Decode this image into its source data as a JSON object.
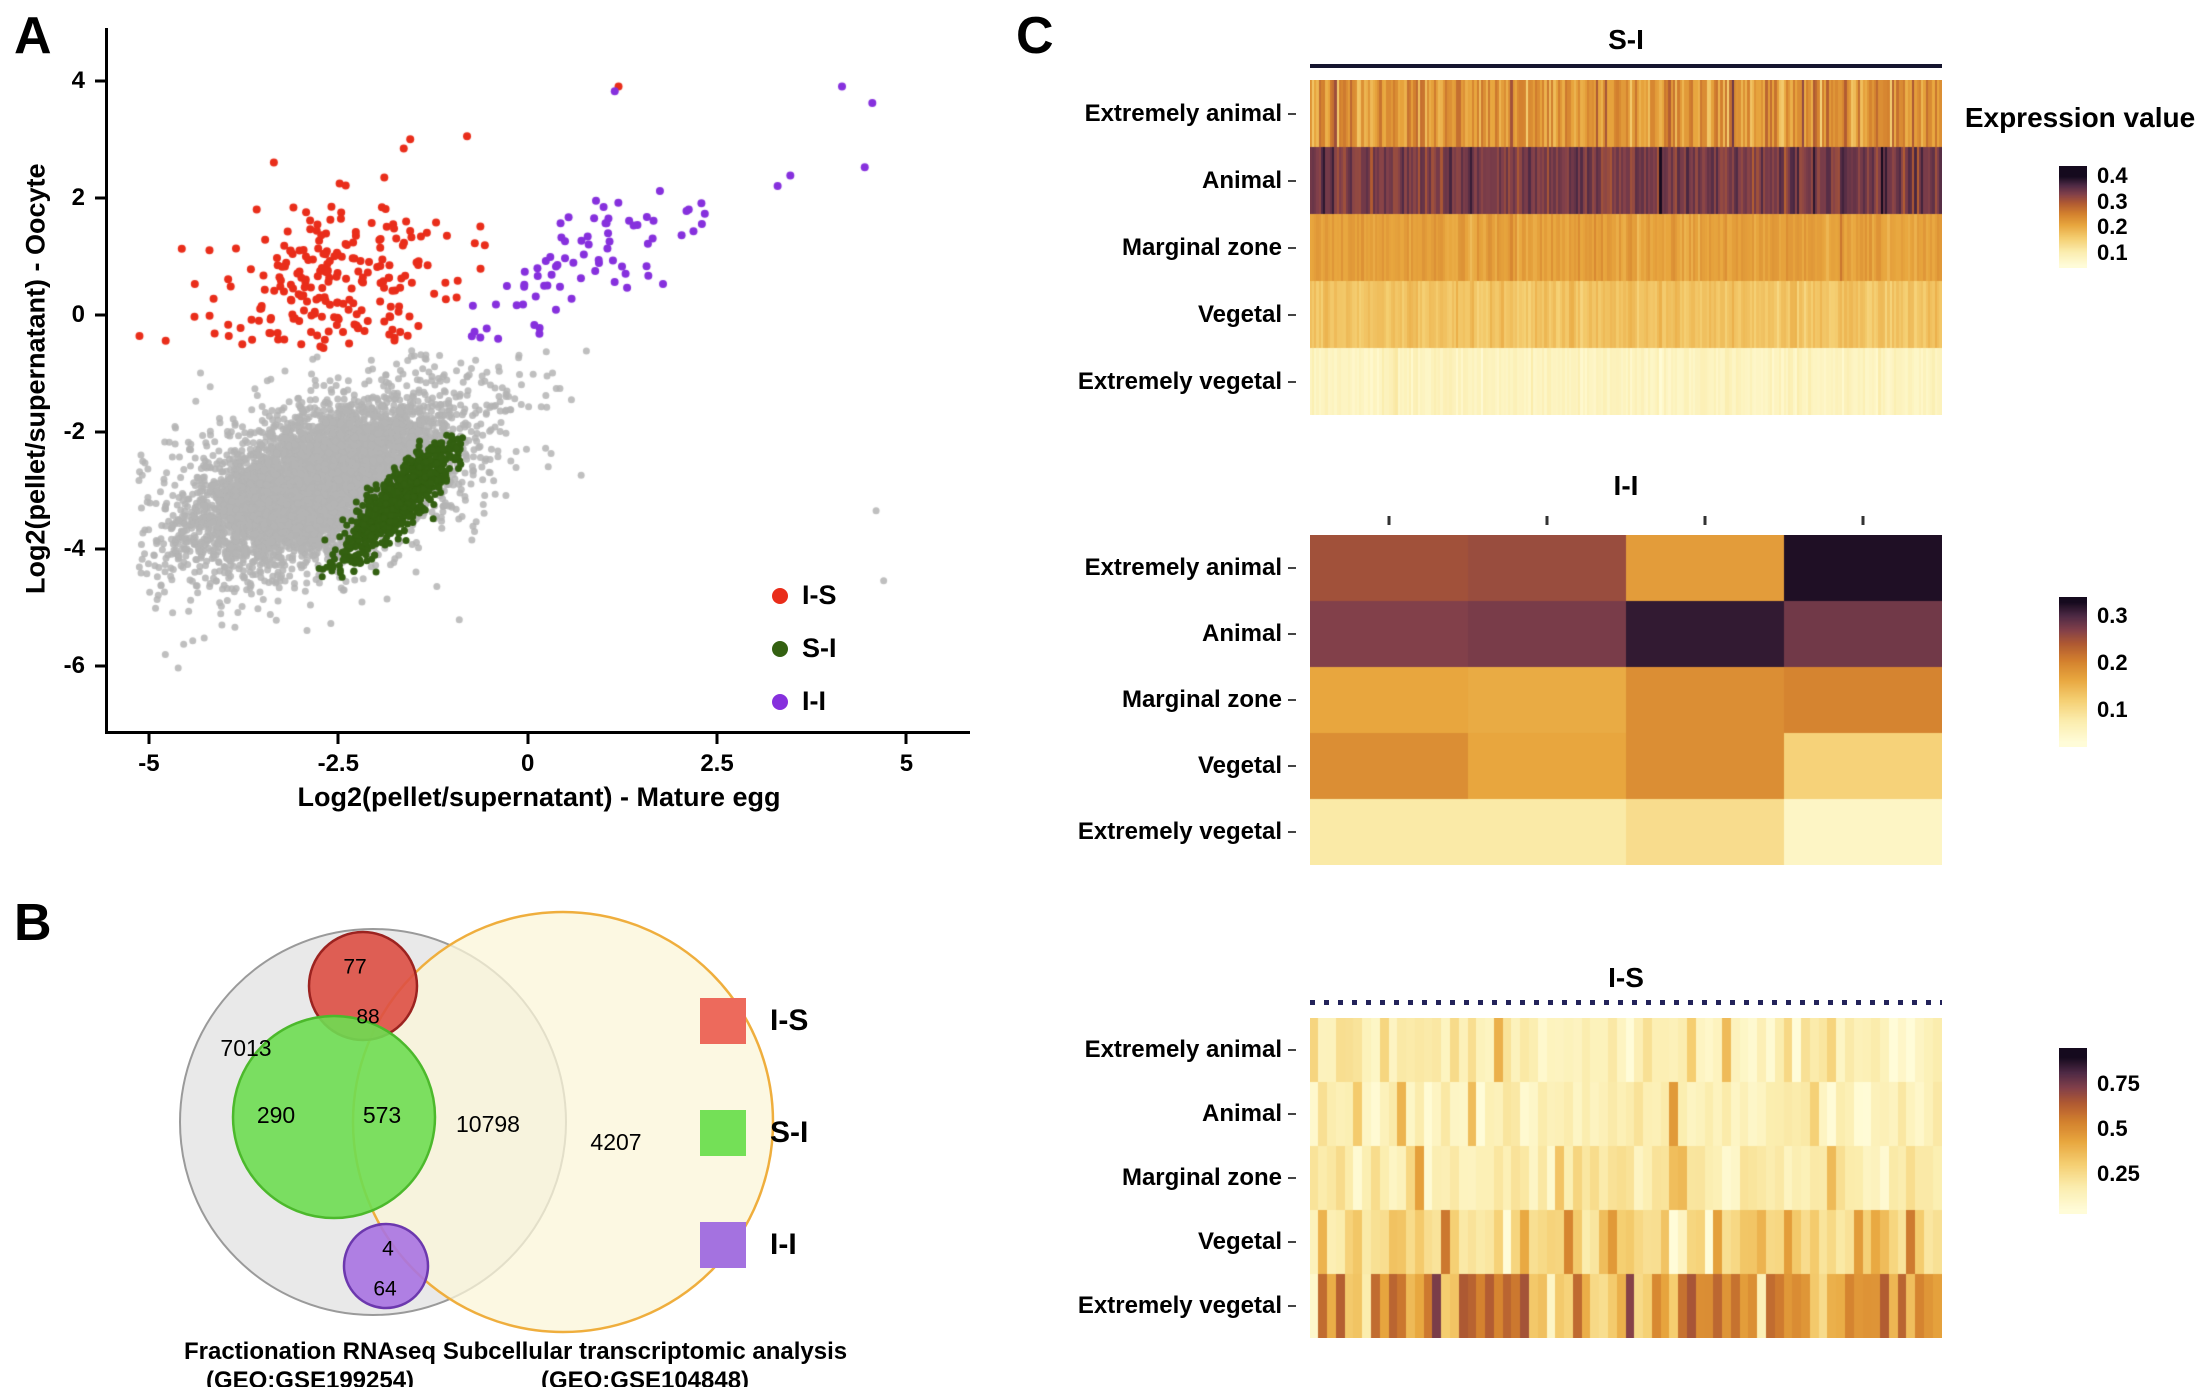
{
  "panel_labels": [
    "A",
    "B",
    "C"
  ],
  "colormap_stops": [
    [
      0.0,
      "#fffcd8"
    ],
    [
      0.15,
      "#fbedae"
    ],
    [
      0.3,
      "#f5cf72"
    ],
    [
      0.45,
      "#e8a63e"
    ],
    [
      0.58,
      "#d3802e"
    ],
    [
      0.7,
      "#b05a32"
    ],
    [
      0.8,
      "#82404a"
    ],
    [
      0.9,
      "#4e2a45"
    ],
    [
      1.0,
      "#150a1e"
    ]
  ],
  "chart_data": [
    {
      "id": "scatter",
      "type": "scatter",
      "xlabel": "Log2(pellet/supernatant) - Mature egg",
      "ylabel": "Log2(pellet/supernatant) - Oocyte",
      "xlim": [
        -5.5,
        5.8
      ],
      "ylim": [
        -7.1,
        4.9
      ],
      "xticks": [
        -5,
        -2.5,
        0,
        2.5,
        5
      ],
      "yticks": [
        -6,
        -4,
        -2,
        0,
        2,
        4
      ],
      "legend": [
        {
          "label": "I-S",
          "color": "#e92d1a"
        },
        {
          "label": "S-I",
          "color": "#336011"
        },
        {
          "label": "I-I",
          "color": "#8630dd"
        }
      ],
      "clusters": [
        {
          "name": "background-core",
          "color": "#b4b4b4",
          "alpha": 0.85,
          "n": 5200,
          "seed": 11,
          "cx": -2.75,
          "cy": -2.9,
          "sx": 0.8,
          "sy": 0.62,
          "corr": 0.5,
          "r": 3.5,
          "xmin": -5.15,
          "xmax": 0.9,
          "ymax": -0.6
        },
        {
          "name": "background-halo",
          "color": "#b4b4b4",
          "alpha": 0.85,
          "n": 1100,
          "seed": 12,
          "cx": -2.7,
          "cy": -2.8,
          "sx": 1.25,
          "sy": 1.05,
          "corr": 0.5,
          "r": 3.5,
          "xmin": -5.15,
          "xmax": 0.9,
          "ymax": -0.58,
          "extra": [
            [
              4.6,
              -3.35
            ],
            [
              4.7,
              -4.55
            ]
          ]
        },
        {
          "name": "S-I",
          "color": "#336011",
          "alpha": 1,
          "n": 800,
          "seed": 21,
          "cx": -1.68,
          "cy": -3.15,
          "sx": 0.42,
          "sy": 0.58,
          "corr": 0.88,
          "r": 3.5,
          "xmax": -0.85,
          "ymin": -4.5,
          "ymax": -2.05
        },
        {
          "name": "I-S",
          "color": "#e92d1a",
          "alpha": 1,
          "n": 240,
          "seed": 31,
          "cx": -2.55,
          "cy": 0.5,
          "sx": 0.78,
          "sy": 0.72,
          "corr": 0.3,
          "r": 4,
          "ymin": -0.6,
          "xmax": -0.55,
          "extra": [
            [
              -1.55,
              3.0
            ],
            [
              -0.8,
              3.05
            ],
            [
              1.2,
              3.9
            ],
            [
              -3.35,
              2.6
            ],
            [
              -4.2,
              1.1
            ]
          ]
        },
        {
          "name": "I-I",
          "color": "#8630dd",
          "alpha": 1,
          "n": 90,
          "seed": 41,
          "cx": 0.55,
          "cy": 0.8,
          "sx": 1.05,
          "sy": 0.75,
          "corr": 0.72,
          "r": 4,
          "ymin": -0.42,
          "xmin": -0.75,
          "extra": [
            [
              4.15,
              3.9
            ],
            [
              4.55,
              3.62
            ],
            [
              4.45,
              2.52
            ],
            [
              1.15,
              3.82
            ],
            [
              3.3,
              2.2
            ],
            [
              2.3,
              1.55
            ],
            [
              1.65,
              1.3
            ]
          ]
        }
      ]
    },
    {
      "id": "venn",
      "type": "venn",
      "left_set": {
        "line1": "Fractionation RNAseq",
        "line2": "(GEO:GSE199254)"
      },
      "right_set": {
        "line1": "Subcellular transcriptomic analysis",
        "line2": "(GEO:GSE104848)"
      },
      "counts": {
        "left_only": "7013",
        "overlap": "10798",
        "right_only": "4207",
        "is_top": "77",
        "is_bottom": "88",
        "si_left": "290",
        "si_right": "573",
        "ii_top": "4",
        "ii_bottom": "64"
      },
      "circles": {
        "left_fill": "#e9e9e9",
        "left_stroke": "#9a9a9a",
        "right_fill": "#fbf6d8",
        "right_stroke": "#efae3d",
        "is_fill": "#dd4f44",
        "is_stroke": "#9c2320",
        "si_fill": "#6edd52",
        "si_stroke": "#4cb92c",
        "ii_fill": "#a873e2",
        "ii_stroke": "#6c38ae"
      },
      "legend": [
        {
          "label": "I-S",
          "color": "#ed6a5c"
        },
        {
          "label": "S-I",
          "color": "#74e057"
        },
        {
          "label": "I-I",
          "color": "#a472e0"
        }
      ]
    },
    {
      "id": "heatmap_si",
      "type": "heatmap",
      "title": "S-I",
      "annotation": "solid",
      "row_labels": [
        "Extremely animal",
        "Animal",
        "Marginal zone",
        "Vegetal",
        "Extremely vegetal"
      ],
      "n_cols": 280,
      "seed": 101,
      "domain": [
        0.05,
        0.4
      ],
      "cb_domain": [
        0.04,
        0.44
      ],
      "rows": [
        {
          "base": 0.225,
          "noise": 0.03,
          "spike_p": 0.07,
          "spike": 0.09
        },
        {
          "base": 0.335,
          "noise": 0.018,
          "spike_p": 0.05,
          "spike": 0.05
        },
        {
          "base": 0.215,
          "noise": 0.012,
          "spike_p": 0.02,
          "spike": 0.04
        },
        {
          "base": 0.17,
          "noise": 0.012,
          "spike_p": 0.0,
          "spike": 0.0
        },
        {
          "base": 0.08,
          "noise": 0.01,
          "spike_p": 0.0,
          "spike": 0.0
        }
      ],
      "colorbar": {
        "title": "Expression value",
        "ticks": [
          0.4,
          0.3,
          0.2,
          0.1
        ]
      }
    },
    {
      "id": "heatmap_ii",
      "type": "heatmap",
      "title": "I-I",
      "annotation": "ticks",
      "row_labels": [
        "Extremely animal",
        "Animal",
        "Marginal zone",
        "Vegetal",
        "Extremely vegetal"
      ],
      "domain": [
        0.03,
        0.33
      ],
      "cb_domain": [
        0.02,
        0.34
      ],
      "matrix": [
        [
          0.25,
          0.255,
          0.175,
          0.325
        ],
        [
          0.27,
          0.275,
          0.315,
          0.28
        ],
        [
          0.165,
          0.16,
          0.19,
          0.2
        ],
        [
          0.19,
          0.165,
          0.19,
          0.115
        ],
        [
          0.08,
          0.08,
          0.1,
          0.05
        ]
      ],
      "colorbar": {
        "title": "",
        "ticks": [
          0.3,
          0.2,
          0.1
        ]
      }
    },
    {
      "id": "heatmap_is",
      "type": "heatmap",
      "title": "I-S",
      "annotation": "dotted",
      "row_labels": [
        "Extremely animal",
        "Animal",
        "Marginal zone",
        "Vegetal",
        "Extremely vegetal"
      ],
      "n_cols": 72,
      "seed": 202,
      "domain": [
        0.05,
        0.9
      ],
      "cb_domain": [
        0.03,
        0.95
      ],
      "rows": [
        {
          "base": 0.16,
          "noise": 0.06,
          "spike_p": 0.08,
          "spike": 0.3
        },
        {
          "base": 0.15,
          "noise": 0.05,
          "spike_p": 0.06,
          "spike": 0.25
        },
        {
          "base": 0.17,
          "noise": 0.05,
          "spike_p": 0.06,
          "spike": 0.2
        },
        {
          "base": 0.28,
          "noise": 0.09,
          "spike_p": 0.1,
          "spike": 0.2
        },
        {
          "base": 0.45,
          "noise": 0.13,
          "spike_p": 0.15,
          "spike": 0.35
        }
      ],
      "colorbar": {
        "title": "",
        "ticks": [
          0.75,
          0.5,
          0.25
        ]
      }
    }
  ]
}
